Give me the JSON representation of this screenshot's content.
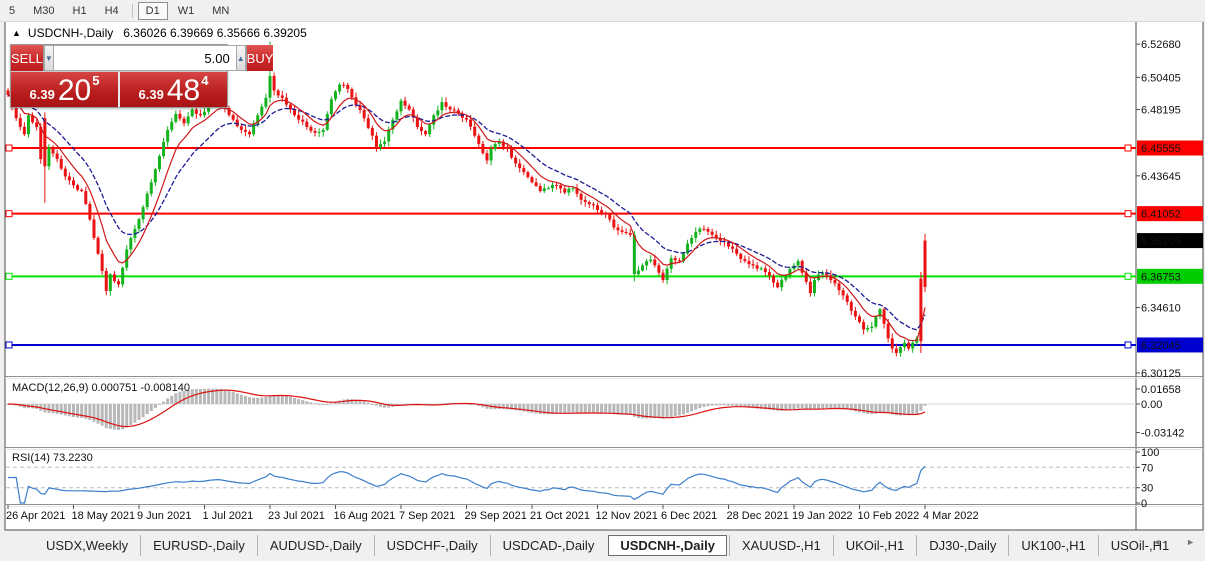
{
  "toolbar": {
    "timeframes": [
      {
        "label": "5",
        "active": false
      },
      {
        "label": "M30",
        "active": false
      },
      {
        "label": "H1",
        "active": false
      },
      {
        "label": "H4",
        "active": false
      },
      {
        "label": "D1",
        "active": true
      },
      {
        "label": "W1",
        "active": false
      },
      {
        "label": "MN",
        "active": false
      }
    ]
  },
  "chart_header": {
    "collapse_icon": "▲",
    "symbol": "USDCNH-,Daily",
    "ohlc": "6.36026 6.39669 6.35666 6.39205"
  },
  "trade_panel": {
    "sell_label": "SELL",
    "buy_label": "BUY",
    "volume": "5.00",
    "spin_down_icon": "▼",
    "spin_up_icon": "▲",
    "sell_price_small": "6.39",
    "sell_price_big": "20",
    "sell_price_sup": "5",
    "buy_price_small": "6.39",
    "buy_price_big": "48",
    "buy_price_sup": "4"
  },
  "price_axis": {
    "ticks": [
      {
        "label": "6.52680",
        "price": 6.5268
      },
      {
        "label": "6.50405",
        "price": 6.50405
      },
      {
        "label": "6.48195",
        "price": 6.48195
      },
      {
        "label": "6.43645",
        "price": 6.43645
      },
      {
        "label": "6.34610",
        "price": 6.3461
      },
      {
        "label": "6.30125",
        "price": 6.30125
      }
    ],
    "badges": [
      {
        "label": "6.45555",
        "price": 6.45555,
        "color": "#ff0000"
      },
      {
        "label": "6.41052",
        "price": 6.41052,
        "color": "#ff0000"
      },
      {
        "label": "6.39205",
        "price": 6.39205,
        "color": "#000000"
      },
      {
        "label": "6.36753",
        "price": 6.36753,
        "color": "#00ce00"
      },
      {
        "label": "6.32045",
        "price": 6.32045,
        "color": "#0000d0"
      }
    ]
  },
  "macd_panel": {
    "label": "MACD(12,26,9) 0.000751 -0.008140",
    "ticks": [
      {
        "label": "0.01658",
        "value": 0.01658
      },
      {
        "label": "0.00",
        "value": 0
      },
      {
        "label": "-0.03142",
        "value": -0.03142
      }
    ]
  },
  "rsi_panel": {
    "label": "RSI(14) 73.2230",
    "ticks": [
      {
        "label": "100",
        "value": 100
      },
      {
        "label": "70",
        "value": 70
      },
      {
        "label": "30",
        "value": 30
      },
      {
        "label": "0",
        "value": 0
      }
    ],
    "levels": [
      70,
      30
    ]
  },
  "tabs": {
    "items": [
      {
        "label": "USDX,Weekly",
        "active": false
      },
      {
        "label": "EURUSD-,Daily",
        "active": false
      },
      {
        "label": "AUDUSD-,Daily",
        "active": false
      },
      {
        "label": "USDCHF-,Daily",
        "active": false
      },
      {
        "label": "USDCAD-,Daily",
        "active": false
      },
      {
        "label": "USDCNH-,Daily",
        "active": true
      },
      {
        "label": "XAUUSD-,H1",
        "active": false
      },
      {
        "label": "UKOil-,H1",
        "active": false
      },
      {
        "label": "DJ30-,Daily",
        "active": false
      },
      {
        "label": "UK100-,H1",
        "active": false
      },
      {
        "label": "USOil-,H1",
        "active": false
      }
    ],
    "scroll_left_icon": "◄",
    "scroll_right_icon": "►"
  },
  "chart_data": {
    "type": "candlestick",
    "symbol": "USDCNH-",
    "timeframe": "Daily",
    "open": 6.36026,
    "high": 6.39669,
    "low": 6.35666,
    "close": 6.39205,
    "current_price": 6.39205,
    "ylim": [
      6.29984,
      6.54199
    ],
    "num_candles": 225,
    "up_color": "#14b31e",
    "down_color": "#ea1212",
    "ma_fast_color": "#d01818",
    "ma_slow_color": "#1c1c96",
    "x_labels": [
      "26 Apr 2021",
      "18 May 2021",
      "9 Jun 2021",
      "1 Jul 2021",
      "23 Jul 2021",
      "16 Aug 2021",
      "7 Sep 2021",
      "29 Sep 2021",
      "21 Oct 2021",
      "12 Nov 2021",
      "6 Dec 2021",
      "28 Dec 2021",
      "19 Jan 2022",
      "10 Feb 2022",
      "4 Mar 2022"
    ],
    "hlines": [
      {
        "price": 6.45555,
        "color": "#ff0000"
      },
      {
        "price": 6.41052,
        "color": "#ff0000"
      },
      {
        "price": 6.36753,
        "color": "#00e400"
      },
      {
        "price": 6.32045,
        "color": "#0000d0"
      }
    ],
    "indicators": {
      "macd": {
        "params": [
          12,
          26,
          9
        ],
        "value": 0.000751,
        "signal_value": -0.00814,
        "range": [
          -0.03142,
          0.01658
        ]
      },
      "rsi": {
        "period": 14,
        "value": 73.223,
        "levels": [
          70,
          30
        ],
        "range": [
          0,
          100
        ]
      }
    },
    "close_anchors": [
      [
        0,
        6.492
      ],
      [
        2,
        6.476
      ],
      [
        4,
        6.465
      ],
      [
        5,
        6.478
      ],
      [
        7,
        6.47
      ],
      [
        8,
        6.448
      ],
      [
        10,
        6.456
      ],
      [
        12,
        6.448
      ],
      [
        14,
        6.436
      ],
      [
        16,
        6.43
      ],
      [
        18,
        6.426
      ],
      [
        20,
        6.4065
      ],
      [
        22,
        6.383
      ],
      [
        24,
        6.3575
      ],
      [
        25,
        6.369
      ],
      [
        27,
        6.362
      ],
      [
        29,
        6.386
      ],
      [
        31,
        6.4
      ],
      [
        33,
        6.415
      ],
      [
        35,
        6.432
      ],
      [
        37,
        6.45
      ],
      [
        39,
        6.468
      ],
      [
        41,
        6.479
      ],
      [
        43,
        6.4725
      ],
      [
        45,
        6.482
      ],
      [
        47,
        6.478
      ],
      [
        49,
        6.485
      ],
      [
        51,
        6.49
      ],
      [
        53,
        6.483
      ],
      [
        55,
        6.475
      ],
      [
        57,
        6.468
      ],
      [
        59,
        6.465
      ],
      [
        61,
        6.478
      ],
      [
        63,
        6.49
      ],
      [
        64,
        6.505
      ],
      [
        65,
        6.495
      ],
      [
        67,
        6.49
      ],
      [
        69,
        6.482
      ],
      [
        71,
        6.475
      ],
      [
        73,
        6.47
      ],
      [
        75,
        6.466
      ],
      [
        77,
        6.468
      ],
      [
        79,
        6.489
      ],
      [
        81,
        6.499
      ],
      [
        83,
        6.496
      ],
      [
        85,
        6.485
      ],
      [
        87,
        6.476
      ],
      [
        89,
        6.464
      ],
      [
        90,
        6.456
      ],
      [
        92,
        6.46
      ],
      [
        94,
        6.475
      ],
      [
        96,
        6.488
      ],
      [
        98,
        6.482
      ],
      [
        100,
        6.47
      ],
      [
        102,
        6.465
      ],
      [
        104,
        6.478
      ],
      [
        106,
        6.487
      ],
      [
        108,
        6.482
      ],
      [
        110,
        6.479
      ],
      [
        112,
        6.475
      ],
      [
        114,
        6.464
      ],
      [
        116,
        6.452
      ],
      [
        117,
        6.447
      ],
      [
        118,
        6.455
      ],
      [
        120,
        6.46
      ],
      [
        122,
        6.455
      ],
      [
        124,
        6.445
      ],
      [
        126,
        6.439
      ],
      [
        128,
        6.432
      ],
      [
        130,
        6.426
      ],
      [
        132,
        6.428
      ],
      [
        134,
        6.43
      ],
      [
        136,
        6.425
      ],
      [
        138,
        6.428
      ],
      [
        140,
        6.42
      ],
      [
        142,
        6.417
      ],
      [
        144,
        6.413
      ],
      [
        146,
        6.41
      ],
      [
        148,
        6.401
      ],
      [
        150,
        6.398
      ],
      [
        152,
        6.396
      ],
      [
        153,
        6.369
      ],
      [
        155,
        6.375
      ],
      [
        157,
        6.379
      ],
      [
        159,
        6.37
      ],
      [
        160,
        6.365
      ],
      [
        162,
        6.38
      ],
      [
        164,
        6.378
      ],
      [
        166,
        6.39
      ],
      [
        168,
        6.398
      ],
      [
        170,
        6.4
      ],
      [
        172,
        6.396
      ],
      [
        174,
        6.392
      ],
      [
        176,
        6.388
      ],
      [
        178,
        6.383
      ],
      [
        180,
        6.378
      ],
      [
        182,
        6.375
      ],
      [
        184,
        6.373
      ],
      [
        186,
        6.368
      ],
      [
        188,
        6.36
      ],
      [
        190,
        6.368
      ],
      [
        192,
        6.375
      ],
      [
        193,
        6.378
      ],
      [
        194,
        6.37
      ],
      [
        196,
        6.356
      ],
      [
        197,
        6.365
      ],
      [
        199,
        6.37
      ],
      [
        201,
        6.365
      ],
      [
        203,
        6.358
      ],
      [
        205,
        6.35
      ],
      [
        207,
        6.34
      ],
      [
        209,
        6.331
      ],
      [
        211,
        6.333
      ],
      [
        212,
        6.34
      ],
      [
        213,
        6.345
      ],
      [
        214,
        6.335
      ],
      [
        215,
        6.325
      ],
      [
        216,
        6.318
      ],
      [
        217,
        6.315
      ],
      [
        219,
        6.322
      ],
      [
        220,
        6.318
      ],
      [
        221,
        6.322
      ],
      [
        222,
        6.325
      ],
      [
        223,
        6.366
      ],
      [
        224,
        6.39205
      ]
    ],
    "candle_overrides": {
      "9": {
        "o": 6.476,
        "h": 6.48,
        "l": 6.418,
        "c": 6.443,
        "color": "red"
      },
      "64": {
        "o": 6.49,
        "h": 6.5285,
        "l": 6.4865,
        "c": 6.505,
        "color": "green"
      },
      "153": {
        "o": 6.396,
        "h": 6.3985,
        "l": 6.364,
        "c": 6.369,
        "color": "green"
      },
      "223": {
        "o": 6.323,
        "h": 6.3705,
        "l": 6.315,
        "c": 6.366,
        "color": "red"
      },
      "224": {
        "o": 6.36026,
        "h": 6.39669,
        "l": 6.35666,
        "c": 6.39205,
        "color": "red"
      }
    }
  }
}
